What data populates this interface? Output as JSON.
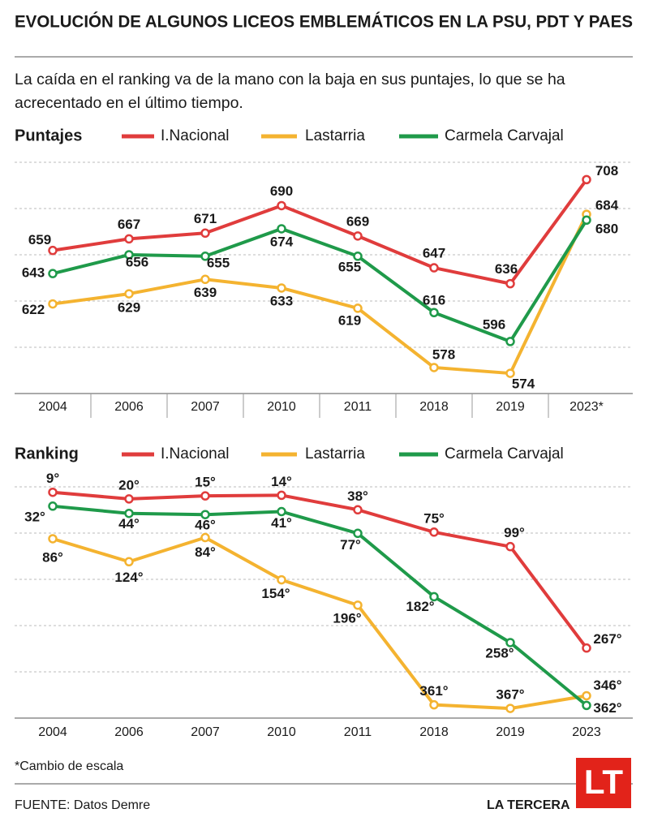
{
  "title": "EVOLUCIÓN DE ALGUNOS LICEOS EMBLEMÁTICOS EN LA PSU, PDT Y PAES",
  "subtitle": "La caída en el ranking va de la mano con la baja en sus puntajes, lo que se ha acrecentado en el último tiempo.",
  "chart_data": [
    {
      "type": "line",
      "title": "Puntajes",
      "categories": [
        "2004",
        "2006",
        "2007",
        "2010",
        "2011",
        "2018",
        "2019",
        "2023*"
      ],
      "series": [
        {
          "name": "I.Nacional",
          "color": "#e03c3c",
          "values": [
            659,
            667,
            671,
            690,
            669,
            647,
            636,
            708
          ]
        },
        {
          "name": "Lastarria",
          "color": "#f4b330",
          "values": [
            622,
            629,
            639,
            633,
            619,
            578,
            574,
            684
          ]
        },
        {
          "name": "Carmela Carvajal",
          "color": "#1f9a4a",
          "values": [
            643,
            656,
            655,
            674,
            655,
            616,
            596,
            680
          ]
        }
      ],
      "ylim": [
        560,
        720
      ],
      "grid": true
    },
    {
      "type": "line",
      "title": "Ranking",
      "categories": [
        "2004",
        "2006",
        "2007",
        "2010",
        "2011",
        "2018",
        "2019",
        "2023"
      ],
      "series": [
        {
          "name": "I.Nacional",
          "color": "#e03c3c",
          "values": [
            9,
            20,
            15,
            14,
            38,
            75,
            99,
            267
          ],
          "value_labels": [
            "9°",
            "20°",
            "15°",
            "14°",
            "38°",
            "75°",
            "99°",
            "267°"
          ]
        },
        {
          "name": "Lastarria",
          "color": "#f4b330",
          "values": [
            86,
            124,
            84,
            154,
            196,
            361,
            367,
            346
          ],
          "value_labels": [
            "86°",
            "124°",
            "84°",
            "154°",
            "196°",
            "361°",
            "367°",
            "346°"
          ]
        },
        {
          "name": "Carmela Carvajal",
          "color": "#1f9a4a",
          "values": [
            32,
            44,
            46,
            41,
            77,
            182,
            258,
            362
          ],
          "value_labels": [
            "32°",
            "44°",
            "46°",
            "41°",
            "77°",
            "182°",
            "258°",
            "362°"
          ]
        }
      ],
      "ylim": [
        0,
        383
      ],
      "inverted": true,
      "grid": true
    }
  ],
  "footnote": "*Cambio de escala",
  "source": "FUENTE: Datos Demre",
  "brand": "LA TERCERA",
  "brand_logo": "LT"
}
